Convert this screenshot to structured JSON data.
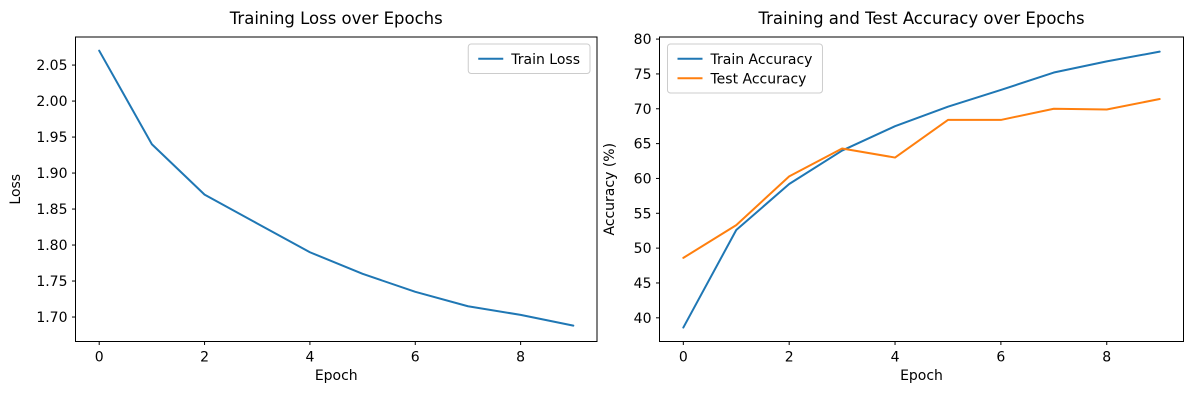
{
  "figure": {
    "background": "#ffffff",
    "text_color": "#000000",
    "axis_color": "#000000",
    "legend_border_color": "#cccccc"
  },
  "chart_data": [
    {
      "id": "loss-chart",
      "type": "line",
      "title": "Training Loss over Epochs",
      "xlabel": "Epoch",
      "ylabel": "Loss",
      "x": [
        0,
        1,
        2,
        3,
        4,
        5,
        6,
        7,
        8,
        9
      ],
      "xticks": [
        0,
        2,
        4,
        6,
        8
      ],
      "xtick_labels": [
        "0",
        "2",
        "4",
        "6",
        "8"
      ],
      "yticks": [
        1.7,
        1.75,
        1.8,
        1.85,
        1.9,
        1.95,
        2.0,
        2.05
      ],
      "ytick_labels": [
        "1.70",
        "1.75",
        "1.80",
        "1.85",
        "1.90",
        "1.95",
        "2.00",
        "2.05"
      ],
      "xlim": [
        -0.45,
        9.45
      ],
      "ylim": [
        1.666,
        2.089
      ],
      "grid": false,
      "legend_position": "upper-right",
      "series": [
        {
          "name": "Train Loss",
          "color": "#1f77b4",
          "values": [
            2.07,
            1.94,
            1.87,
            1.83,
            1.79,
            1.76,
            1.735,
            1.715,
            1.703,
            1.688
          ]
        }
      ]
    },
    {
      "id": "accuracy-chart",
      "type": "line",
      "title": "Training and Test Accuracy over Epochs",
      "xlabel": "Epoch",
      "ylabel": "Accuracy (%)",
      "x": [
        0,
        1,
        2,
        3,
        4,
        5,
        6,
        7,
        8,
        9
      ],
      "xticks": [
        0,
        2,
        4,
        6,
        8
      ],
      "xtick_labels": [
        "0",
        "2",
        "4",
        "6",
        "8"
      ],
      "yticks": [
        40,
        45,
        50,
        55,
        60,
        65,
        70,
        75,
        80
      ],
      "ytick_labels": [
        "40",
        "45",
        "50",
        "55",
        "60",
        "65",
        "70",
        "75",
        "80"
      ],
      "xlim": [
        -0.45,
        9.45
      ],
      "ylim": [
        36.6,
        80.3
      ],
      "grid": false,
      "legend_position": "upper-left",
      "series": [
        {
          "name": "Train Accuracy",
          "color": "#1f77b4",
          "values": [
            38.6,
            52.6,
            59.2,
            64.0,
            67.5,
            70.3,
            72.7,
            75.2,
            76.8,
            78.2
          ]
        },
        {
          "name": "Test Accuracy",
          "color": "#ff7f0e",
          "values": [
            48.6,
            53.3,
            60.3,
            64.3,
            63.0,
            68.4,
            68.4,
            70.0,
            69.9,
            71.4
          ]
        }
      ]
    }
  ]
}
